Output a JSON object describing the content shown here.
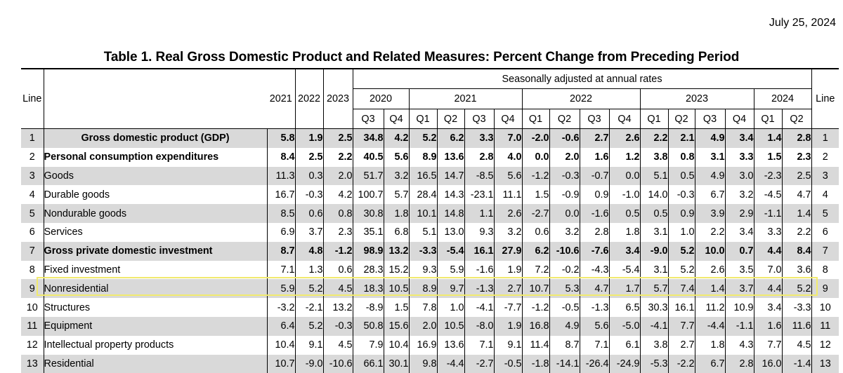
{
  "date": "July 25, 2024",
  "title": "Table 1. Real Gross Domestic Product and Related Measures: Percent Change from Preceding Period",
  "header": {
    "line_label": "Line",
    "annual_years": [
      "2021",
      "2022",
      "2023"
    ],
    "seasonal_label": "Seasonally adjusted at annual rates",
    "quarter_years": [
      {
        "year": "2020",
        "span": 2
      },
      {
        "year": "2021",
        "span": 4
      },
      {
        "year": "2022",
        "span": 4
      },
      {
        "year": "2023",
        "span": 4
      },
      {
        "year": "2024",
        "span": 2
      }
    ],
    "quarters": [
      "Q3",
      "Q4",
      "Q1",
      "Q2",
      "Q3",
      "Q4",
      "Q1",
      "Q2",
      "Q3",
      "Q4",
      "Q1",
      "Q2",
      "Q3",
      "Q4",
      "Q1",
      "Q2"
    ]
  },
  "rows": [
    {
      "line": "1",
      "label": "Gross domestic product (GDP)",
      "indent": "center",
      "bold": true,
      "shade": true,
      "values": [
        "5.8",
        "1.9",
        "2.5",
        "34.8",
        "4.2",
        "5.2",
        "6.2",
        "3.3",
        "7.0",
        "-2.0",
        "-0.6",
        "2.7",
        "2.6",
        "2.2",
        "2.1",
        "4.9",
        "3.4",
        "1.4",
        "2.8"
      ]
    },
    {
      "line": "2",
      "label": "Personal consumption expenditures",
      "indent": 0,
      "bold": true,
      "shade": false,
      "values": [
        "8.4",
        "2.5",
        "2.2",
        "40.5",
        "5.6",
        "8.9",
        "13.6",
        "2.8",
        "4.0",
        "0.0",
        "2.0",
        "1.6",
        "1.2",
        "3.8",
        "0.8",
        "3.1",
        "3.3",
        "1.5",
        "2.3"
      ]
    },
    {
      "line": "3",
      "label": "Goods",
      "indent": 1,
      "bold": false,
      "shade": true,
      "values": [
        "11.3",
        "0.3",
        "2.0",
        "51.7",
        "3.2",
        "16.5",
        "14.7",
        "-8.5",
        "5.6",
        "-1.2",
        "-0.3",
        "-0.7",
        "0.0",
        "5.1",
        "0.5",
        "4.9",
        "3.0",
        "-2.3",
        "2.5"
      ]
    },
    {
      "line": "4",
      "label": "Durable goods",
      "indent": 2,
      "bold": false,
      "shade": false,
      "values": [
        "16.7",
        "-0.3",
        "4.2",
        "100.7",
        "5.7",
        "28.4",
        "14.3",
        "-23.1",
        "11.1",
        "1.5",
        "-0.9",
        "0.9",
        "-1.0",
        "14.0",
        "-0.3",
        "6.7",
        "3.2",
        "-4.5",
        "4.7"
      ]
    },
    {
      "line": "5",
      "label": "Nondurable goods",
      "indent": 2,
      "bold": false,
      "shade": true,
      "values": [
        "8.5",
        "0.6",
        "0.8",
        "30.8",
        "1.8",
        "10.1",
        "14.8",
        "1.1",
        "2.6",
        "-2.7",
        "0.0",
        "-1.6",
        "0.5",
        "0.5",
        "0.9",
        "3.9",
        "2.9",
        "-1.1",
        "1.4"
      ]
    },
    {
      "line": "6",
      "label": "Services",
      "indent": 1,
      "bold": false,
      "shade": false,
      "values": [
        "6.9",
        "3.7",
        "2.3",
        "35.1",
        "6.8",
        "5.1",
        "13.0",
        "9.3",
        "3.2",
        "0.6",
        "3.2",
        "2.8",
        "1.8",
        "3.1",
        "1.0",
        "2.2",
        "3.4",
        "3.3",
        "2.2"
      ]
    },
    {
      "line": "7",
      "label": "Gross private domestic investment",
      "indent": 0,
      "bold": true,
      "shade": true,
      "values": [
        "8.7",
        "4.8",
        "-1.2",
        "98.9",
        "13.2",
        "-3.3",
        "-5.4",
        "16.1",
        "27.9",
        "6.2",
        "-10.6",
        "-7.6",
        "3.4",
        "-9.0",
        "5.2",
        "10.0",
        "0.7",
        "4.4",
        "8.4"
      ]
    },
    {
      "line": "8",
      "label": "Fixed investment",
      "indent": 1,
      "bold": false,
      "shade": false,
      "values": [
        "7.1",
        "1.3",
        "0.6",
        "28.3",
        "15.2",
        "9.3",
        "5.9",
        "-1.6",
        "1.9",
        "7.2",
        "-0.2",
        "-4.3",
        "-5.4",
        "3.1",
        "5.2",
        "2.6",
        "3.5",
        "7.0",
        "3.6"
      ]
    },
    {
      "line": "9",
      "label": "Nonresidential",
      "indent": 2,
      "bold": false,
      "shade": true,
      "values": [
        "5.9",
        "5.2",
        "4.5",
        "18.3",
        "10.5",
        "8.9",
        "9.7",
        "-1.3",
        "2.7",
        "10.7",
        "5.3",
        "4.7",
        "1.7",
        "5.7",
        "7.4",
        "1.4",
        "3.7",
        "4.4",
        "5.2"
      ]
    },
    {
      "line": "10",
      "label": "Structures",
      "indent": 3,
      "bold": false,
      "shade": false,
      "values": [
        "-3.2",
        "-2.1",
        "13.2",
        "-8.9",
        "1.5",
        "7.8",
        "1.0",
        "-4.1",
        "-7.7",
        "-1.2",
        "-0.5",
        "-1.3",
        "6.5",
        "30.3",
        "16.1",
        "11.2",
        "10.9",
        "3.4",
        "-3.3"
      ]
    },
    {
      "line": "11",
      "label": "Equipment",
      "indent": 3,
      "bold": false,
      "shade": true,
      "values": [
        "6.4",
        "5.2",
        "-0.3",
        "50.8",
        "15.6",
        "2.0",
        "10.5",
        "-8.0",
        "1.9",
        "16.8",
        "4.9",
        "5.6",
        "-5.0",
        "-4.1",
        "7.7",
        "-4.4",
        "-1.1",
        "1.6",
        "11.6"
      ]
    },
    {
      "line": "12",
      "label": "Intellectual property products",
      "indent": 3,
      "bold": false,
      "shade": false,
      "values": [
        "10.4",
        "9.1",
        "4.5",
        "7.9",
        "10.4",
        "16.9",
        "13.6",
        "7.1",
        "9.1",
        "11.4",
        "8.7",
        "7.1",
        "6.1",
        "3.8",
        "2.7",
        "1.8",
        "4.3",
        "7.7",
        "4.5"
      ]
    },
    {
      "line": "13",
      "label": "Residential",
      "indent": 2,
      "bold": false,
      "shade": true,
      "values": [
        "10.7",
        "-9.0",
        "-10.6",
        "66.1",
        "30.1",
        "9.8",
        "-4.4",
        "-2.7",
        "-0.5",
        "-1.8",
        "-14.1",
        "-26.4",
        "-24.9",
        "-5.3",
        "-2.2",
        "6.7",
        "2.8",
        "16.0",
        "-1.4"
      ]
    }
  ]
}
